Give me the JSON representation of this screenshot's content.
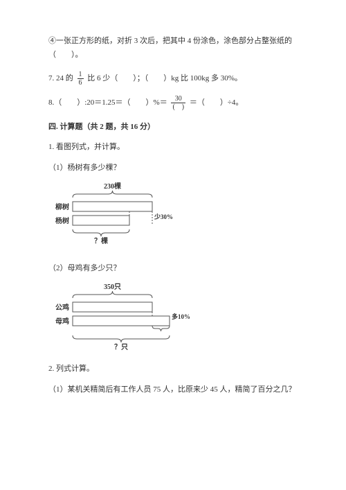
{
  "q4": {
    "text1": "④一张正方形的纸，对折 3 次后，把其中 4 份涂色，涂色部分占整张纸的",
    "text2": "（　　）。"
  },
  "q7": {
    "p1": "7. 24 的",
    "frac": {
      "num": "1",
      "den": "6"
    },
    "p2": "比 6 少（　　）；（　　）kg 比 100kg 多 30%。"
  },
  "q8": {
    "p1": "8.（　　）:20＝1.25＝（　　）%＝",
    "frac": {
      "num": "30",
      "den": "(　)"
    },
    "p2": "＝（　　）÷4。"
  },
  "section4": {
    "title": "四. 计算题（共 2 题，共 16 分）",
    "q1": {
      "title": "1. 看图列式，并计算。",
      "sub1": "（1）杨树有多少棵？",
      "sub2": "（2）母鸡有多少只？"
    },
    "q2": {
      "title": "2. 列式计算。",
      "sub1": "（1）某机关精简后有工作人员 75 人，比原来少 45 人，精简了百分之几？"
    }
  },
  "diagram1": {
    "topLabel": "230棵",
    "leftLabel1": "柳树",
    "leftLabel2": "杨树",
    "rightLabel": "少30%",
    "bottomLabel": "？棵",
    "colors": {
      "line": "#555555",
      "text": "#333333"
    }
  },
  "diagram2": {
    "topLabel": "350只",
    "leftLabel1": "公鸡",
    "leftLabel2": "母鸡",
    "rightLabel": "多10%",
    "bottomLabel": "？只",
    "colors": {
      "line": "#555555",
      "text": "#333333"
    }
  }
}
